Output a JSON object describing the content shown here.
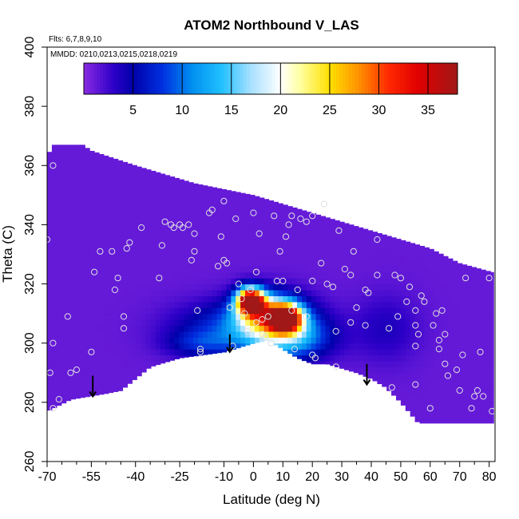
{
  "chart_data": {
    "type": "heatmap",
    "title": "ATOM2 Northbound V_LAS",
    "xlabel": "Latitude (deg N)",
    "ylabel": "Theta (C)",
    "xlim": [
      -70,
      82
    ],
    "ylim": [
      260,
      400
    ],
    "x_ticks": [
      -70,
      -55,
      -40,
      -25,
      -10,
      0,
      10,
      20,
      30,
      40,
      50,
      60,
      70,
      80
    ],
    "x_tick_labels": [
      "-70",
      "-55",
      "-40",
      "-25",
      "-10",
      "0",
      "10",
      "20",
      "30",
      "40",
      "50",
      "60",
      "70",
      "80"
    ],
    "x_minor_ticks": [
      -65,
      -60,
      -50,
      -45,
      -35,
      -30,
      -20,
      -15,
      -5,
      5,
      15,
      25,
      35,
      45,
      55,
      65,
      75
    ],
    "y_ticks": [
      260,
      280,
      300,
      320,
      340,
      360,
      380,
      400
    ],
    "y_tick_labels": [
      "260",
      "280",
      "300",
      "320",
      "340",
      "360",
      "380",
      "400"
    ],
    "flights_note": "Flts: 6,7,8,9,10",
    "dates_note": "MMDD: 0210,0213,0215,0218,0219",
    "colorbar": {
      "min": 0,
      "max": 38,
      "ticks": [
        5,
        10,
        15,
        20,
        25,
        30,
        35
      ],
      "tick_labels": [
        "5",
        "10",
        "15",
        "20",
        "25",
        "30",
        "35"
      ],
      "stops": [
        {
          "value": 0,
          "color": "#8a2be2"
        },
        {
          "value": 3,
          "color": "#2e00c8"
        },
        {
          "value": 5,
          "color": "#0000aa"
        },
        {
          "value": 8,
          "color": "#0030e0"
        },
        {
          "value": 11,
          "color": "#0090f0"
        },
        {
          "value": 14,
          "color": "#20c0ff"
        },
        {
          "value": 17,
          "color": "#a8e0ff"
        },
        {
          "value": 20,
          "color": "#ffffff"
        },
        {
          "value": 22,
          "color": "#ffffa0"
        },
        {
          "value": 25,
          "color": "#ffe000"
        },
        {
          "value": 28,
          "color": "#ff9000"
        },
        {
          "value": 31,
          "color": "#ff2800"
        },
        {
          "value": 34,
          "color": "#e00000"
        },
        {
          "value": 38,
          "color": "#a01818"
        }
      ]
    },
    "field": {
      "background_value": 1.2,
      "upper_boundary": [
        [
          -70,
          363
        ],
        [
          -68,
          367
        ],
        [
          -58,
          367
        ],
        [
          -55,
          365
        ],
        [
          -40,
          360
        ],
        [
          -20,
          354
        ],
        [
          0,
          350
        ],
        [
          20,
          344
        ],
        [
          40,
          338
        ],
        [
          60,
          332
        ],
        [
          70,
          327
        ],
        [
          81,
          324
        ]
      ],
      "lower_boundary": [
        [
          -70,
          277
        ],
        [
          -62,
          281
        ],
        [
          -50,
          283
        ],
        [
          -45,
          284
        ],
        [
          -35,
          292
        ],
        [
          -25,
          295
        ],
        [
          -10,
          297
        ],
        [
          0,
          300
        ],
        [
          5,
          301
        ],
        [
          10,
          298
        ],
        [
          15,
          295
        ],
        [
          20,
          293
        ],
        [
          25,
          293
        ],
        [
          35,
          290
        ],
        [
          40,
          288
        ],
        [
          45,
          285
        ],
        [
          50,
          280
        ],
        [
          56,
          273
        ],
        [
          60,
          273
        ],
        [
          70,
          273
        ],
        [
          81,
          273
        ]
      ],
      "blobs": [
        {
          "lat": -1,
          "theta": 314.5,
          "amp": 37,
          "sx": 3.2,
          "sy": 3.0
        },
        {
          "lat": 11,
          "theta": 308.5,
          "amp": 32,
          "sx": 3.6,
          "sy": 3.0
        },
        {
          "lat": 5,
          "theta": 310,
          "amp": 16,
          "sx": 7.0,
          "sy": 4.5
        },
        {
          "lat": 6,
          "theta": 306,
          "amp": 11,
          "sx": 10,
          "sy": 6.5
        },
        {
          "lat": 14,
          "theta": 302,
          "amp": 8,
          "sx": 9,
          "sy": 5
        },
        {
          "lat": -12,
          "theta": 305,
          "amp": 5,
          "sx": 12,
          "sy": 6
        },
        {
          "lat": -18,
          "theta": 300,
          "amp": 4,
          "sx": 8,
          "sy": 3
        },
        {
          "lat": 45,
          "theta": 305,
          "amp": 2.5,
          "sx": 8,
          "sy": 8
        }
      ]
    },
    "points": [
      [
        -68,
        360
      ],
      [
        -70,
        335
      ],
      [
        -68,
        300
      ],
      [
        -69,
        290
      ],
      [
        -68,
        278
      ],
      [
        -66,
        281
      ],
      [
        -63,
        309
      ],
      [
        -62,
        290
      ],
      [
        -60,
        291
      ],
      [
        -55,
        297
      ],
      [
        -54,
        324
      ],
      [
        -52,
        331
      ],
      [
        -48,
        331
      ],
      [
        -47,
        318
      ],
      [
        -46,
        322
      ],
      [
        -44,
        305
      ],
      [
        -44,
        309
      ],
      [
        -43,
        332
      ],
      [
        -42,
        334
      ],
      [
        -38,
        339
      ],
      [
        -32,
        322
      ],
      [
        -31,
        333
      ],
      [
        -30,
        341
      ],
      [
        -28,
        340
      ],
      [
        -27,
        339
      ],
      [
        -24,
        339
      ],
      [
        -22,
        340
      ],
      [
        -21,
        328
      ],
      [
        -20,
        331
      ],
      [
        -20,
        337
      ],
      [
        -19,
        311
      ],
      [
        -18,
        298
      ],
      [
        -18,
        297
      ],
      [
        -15,
        344
      ],
      [
        -14,
        345
      ],
      [
        -12,
        326
      ],
      [
        -11,
        336
      ],
      [
        -10,
        348
      ],
      [
        -9,
        327
      ],
      [
        -8,
        312
      ],
      [
        -7,
        299
      ],
      [
        -6,
        342
      ],
      [
        -5,
        320
      ],
      [
        -4,
        315
      ],
      [
        -3,
        310
      ],
      [
        -2,
        304
      ],
      [
        -1,
        318
      ],
      [
        0,
        344
      ],
      [
        1,
        324
      ],
      [
        1,
        307
      ],
      [
        2,
        337
      ],
      [
        3,
        308
      ],
      [
        3,
        303
      ],
      [
        4,
        302
      ],
      [
        5,
        309
      ],
      [
        6,
        300
      ],
      [
        7,
        343
      ],
      [
        8,
        321
      ],
      [
        9,
        331
      ],
      [
        10,
        321
      ],
      [
        11,
        336
      ],
      [
        12,
        340
      ],
      [
        13,
        343
      ],
      [
        13,
        311
      ],
      [
        14,
        298
      ],
      [
        15,
        318
      ],
      [
        16,
        342
      ],
      [
        18,
        309
      ],
      [
        18,
        341
      ],
      [
        20,
        321
      ],
      [
        20,
        343
      ],
      [
        21,
        295
      ],
      [
        23,
        327
      ],
      [
        24,
        347
      ],
      [
        25,
        320
      ],
      [
        27,
        319
      ],
      [
        28,
        304
      ],
      [
        28,
        292
      ],
      [
        29,
        338
      ],
      [
        31,
        325
      ],
      [
        33,
        307
      ],
      [
        33,
        323
      ],
      [
        34,
        331
      ],
      [
        35,
        312
      ],
      [
        38,
        318
      ],
      [
        38,
        306
      ],
      [
        39,
        317
      ],
      [
        42,
        335
      ],
      [
        42,
        323
      ],
      [
        46,
        305
      ],
      [
        48,
        323
      ],
      [
        49,
        309
      ],
      [
        50,
        322
      ],
      [
        52,
        314
      ],
      [
        53,
        319
      ],
      [
        55,
        311
      ],
      [
        55,
        306
      ],
      [
        55,
        299
      ],
      [
        56,
        303
      ],
      [
        57,
        316
      ],
      [
        58,
        314
      ],
      [
        61,
        306
      ],
      [
        62,
        310
      ],
      [
        63,
        301
      ],
      [
        63,
        298
      ],
      [
        64,
        311
      ],
      [
        65,
        293
      ],
      [
        66,
        289
      ],
      [
        69,
        291
      ],
      [
        70,
        284
      ],
      [
        71,
        296
      ],
      [
        72,
        322
      ],
      [
        74,
        278
      ],
      [
        75,
        282
      ],
      [
        76,
        284
      ],
      [
        77,
        297
      ],
      [
        78,
        282
      ],
      [
        80,
        322
      ],
      [
        81,
        277
      ],
      [
        60,
        278
      ],
      [
        65,
        303
      ],
      [
        47,
        285
      ],
      [
        -25,
        340
      ],
      [
        -10,
        328
      ],
      [
        20,
        296
      ],
      [
        55,
        286
      ]
    ],
    "arrows": [
      {
        "lat": -54.5,
        "theta_top": 289,
        "theta_bottom": 282
      },
      {
        "lat": -8,
        "theta_top": 303,
        "theta_bottom": 297
      },
      {
        "lat": 38.5,
        "theta_top": 293,
        "theta_bottom": 286
      }
    ]
  }
}
